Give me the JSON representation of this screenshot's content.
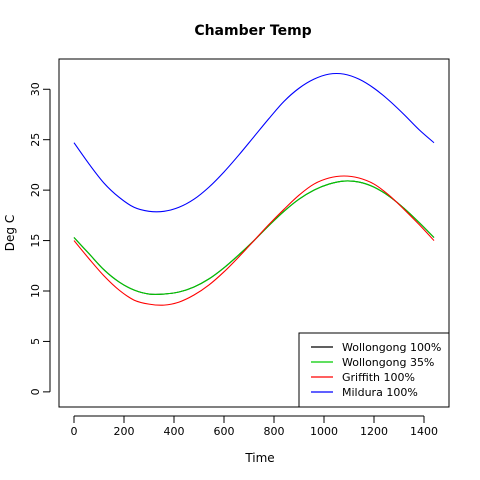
{
  "chart_data": {
    "type": "line",
    "title": "Chamber Temp",
    "xlabel": "Time",
    "ylabel": "Deg C",
    "xlim": [
      -60,
      1500
    ],
    "ylim": [
      -1.5,
      33
    ],
    "xticks": [
      0,
      200,
      400,
      600,
      800,
      1000,
      1200,
      1400
    ],
    "yticks": [
      0,
      5,
      10,
      15,
      20,
      25,
      30
    ],
    "grid": false,
    "legend_position": "bottom-right",
    "series": [
      {
        "name": "Wollongong 100%",
        "color": "#000000",
        "x": [
          0,
          60,
          120,
          180,
          240,
          300,
          360,
          420,
          480,
          540,
          600,
          660,
          720,
          780,
          840,
          900,
          960,
          1020,
          1080,
          1140,
          1200,
          1260,
          1320,
          1380,
          1440
        ],
        "y": [
          15.3,
          13.7,
          12.1,
          10.9,
          10.1,
          9.7,
          9.7,
          9.9,
          10.4,
          11.2,
          12.3,
          13.6,
          15.0,
          16.5,
          17.9,
          19.1,
          20.0,
          20.6,
          20.9,
          20.8,
          20.3,
          19.4,
          18.2,
          16.8,
          15.3
        ]
      },
      {
        "name": "Wollongong 35%",
        "color": "#00cc00",
        "x": [
          0,
          60,
          120,
          180,
          240,
          300,
          360,
          420,
          480,
          540,
          600,
          660,
          720,
          780,
          840,
          900,
          960,
          1020,
          1080,
          1140,
          1200,
          1260,
          1320,
          1380,
          1440
        ],
        "y": [
          15.3,
          13.7,
          12.1,
          10.9,
          10.1,
          9.7,
          9.7,
          9.9,
          10.4,
          11.2,
          12.3,
          13.6,
          15.0,
          16.5,
          17.9,
          19.1,
          20.0,
          20.6,
          20.9,
          20.8,
          20.3,
          19.4,
          18.2,
          16.8,
          15.3
        ]
      },
      {
        "name": "Griffith 100%",
        "color": "#ff0000",
        "x": [
          0,
          60,
          120,
          180,
          240,
          300,
          360,
          420,
          480,
          540,
          600,
          660,
          720,
          780,
          840,
          900,
          960,
          1020,
          1080,
          1140,
          1200,
          1260,
          1320,
          1380,
          1440
        ],
        "y": [
          15.0,
          13.2,
          11.5,
          10.1,
          9.1,
          8.7,
          8.6,
          8.9,
          9.6,
          10.6,
          11.9,
          13.4,
          15.0,
          16.6,
          18.1,
          19.5,
          20.6,
          21.2,
          21.4,
          21.2,
          20.6,
          19.5,
          18.1,
          16.6,
          15.0
        ]
      },
      {
        "name": "Mildura 100%",
        "color": "#0000ff",
        "x": [
          0,
          60,
          120,
          180,
          240,
          300,
          360,
          420,
          480,
          540,
          600,
          660,
          720,
          780,
          840,
          900,
          960,
          1020,
          1080,
          1140,
          1200,
          1260,
          1320,
          1380,
          1440
        ],
        "y": [
          24.7,
          22.6,
          20.7,
          19.3,
          18.3,
          17.9,
          17.9,
          18.3,
          19.1,
          20.3,
          21.8,
          23.5,
          25.3,
          27.1,
          28.8,
          30.1,
          31.0,
          31.5,
          31.5,
          31.0,
          30.1,
          28.9,
          27.5,
          26.0,
          24.7
        ]
      }
    ]
  }
}
